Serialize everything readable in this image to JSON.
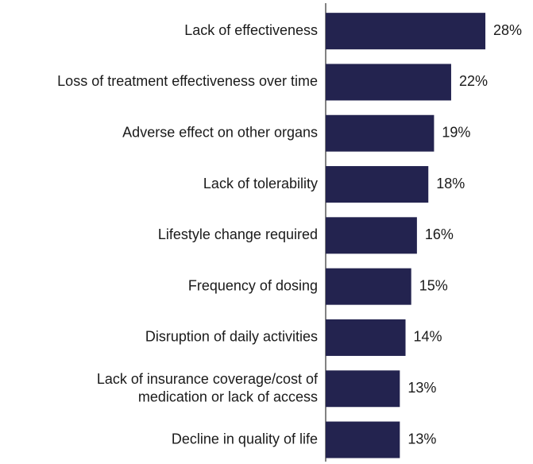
{
  "chart_data": {
    "type": "bar",
    "orientation": "horizontal",
    "categories": [
      "Lack of effectiveness",
      "Loss of treatment effectiveness over time",
      "Adverse effect on other organs",
      "Lack of tolerability",
      "Lifestyle change required",
      "Frequency of dosing",
      "Disruption of daily activities",
      "Lack of insurance coverage/cost of\nmedication or lack of access",
      "Decline in quality of life"
    ],
    "values": [
      28,
      22,
      19,
      18,
      16,
      15,
      14,
      13,
      13
    ],
    "value_labels": [
      "28%",
      "22%",
      "19%",
      "18%",
      "16%",
      "15%",
      "14%",
      "13%",
      "13%"
    ],
    "color": "#23234f"
  }
}
